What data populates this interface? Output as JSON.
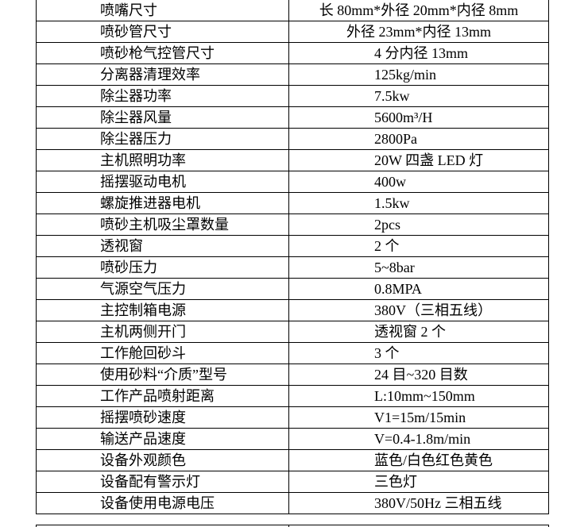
{
  "table": {
    "rows": [
      [
        "喷嘴尺寸",
        "长 80mm*外径 20mm*内径 8mm"
      ],
      [
        "喷砂管尺寸",
        "外径 23mm*内径 13mm"
      ],
      [
        "喷砂枪气控管尺寸",
        "4 分内径 13mm"
      ],
      [
        "分离器清理效率",
        "125kg/min"
      ],
      [
        "除尘器功率",
        "7.5kw"
      ],
      [
        "除尘器风量",
        "5600m³/H"
      ],
      [
        "除尘器压力",
        "2800Pa"
      ],
      [
        "主机照明功率",
        "20W 四盏 LED 灯"
      ],
      [
        "摇摆驱动电机",
        "400w"
      ],
      [
        "螺旋推进器电机",
        "1.5kw"
      ],
      [
        "喷砂主机吸尘罩数量",
        "2pcs"
      ],
      [
        "透视窗",
        "2 个"
      ],
      [
        "喷砂压力",
        "5~8bar"
      ],
      [
        "气源空气压力",
        "0.8MPA"
      ],
      [
        "主控制箱电源",
        "380V（三相五线）"
      ],
      [
        "主机两侧开门",
        "透视窗 2 个"
      ],
      [
        "工作舱回砂斗",
        "3 个"
      ],
      [
        "使用砂料“介质”型号",
        "24 目~320 目数"
      ],
      [
        "工作产品喷射距离",
        "L:10mm~150mm"
      ],
      [
        "摇摆喷砂速度",
        "V1=15m/15min"
      ],
      [
        "输送产品速度",
        "V=0.4-1.8m/min"
      ],
      [
        "设备外观颜色",
        "蓝色/白色红色黄色"
      ],
      [
        "设备配有警示灯",
        "三色灯"
      ],
      [
        "设备使用电源电压",
        "380V/50Hz 三相五线"
      ]
    ]
  }
}
